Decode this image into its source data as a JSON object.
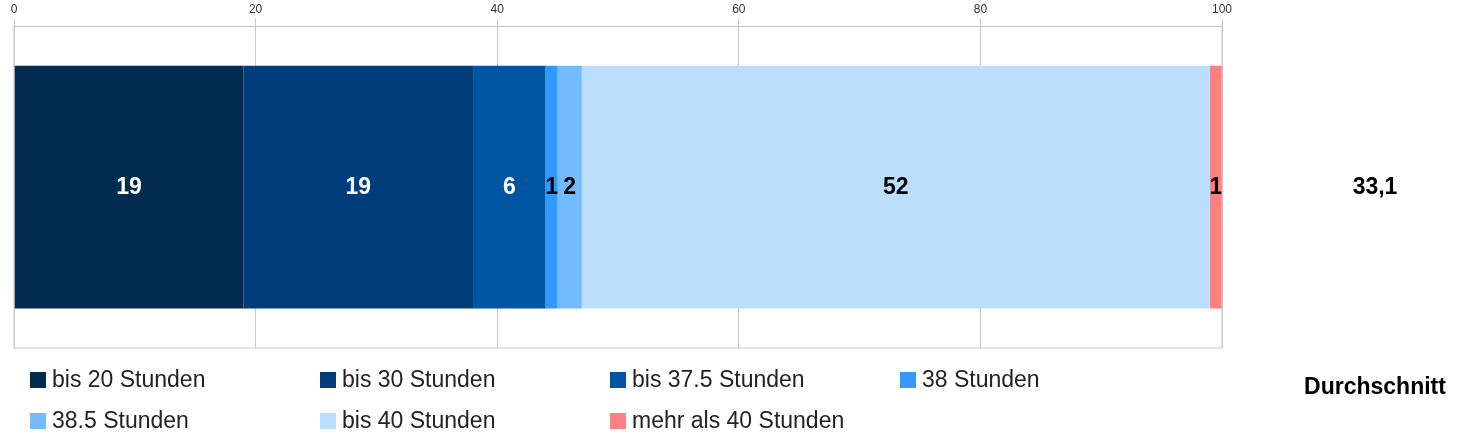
{
  "chart_data": {
    "type": "bar",
    "orientation": "horizontal",
    "stacked": true,
    "categories": [
      null
    ],
    "series": [
      {
        "name": "bis 20 Stunden",
        "color": "#012b50",
        "values": [
          19
        ]
      },
      {
        "name": "bis 30 Stunden",
        "color": "#003d7a",
        "values": [
          19
        ]
      },
      {
        "name": "bis 37.5 Stunden",
        "color": "#0055a3",
        "values": [
          6
        ]
      },
      {
        "name": "38 Stunden",
        "color": "#3399ff",
        "values": [
          1
        ]
      },
      {
        "name": "38.5 Stunden",
        "color": "#73bbfc",
        "values": [
          2
        ]
      },
      {
        "name": "bis 40 Stunden",
        "color": "#bbdefc",
        "values": [
          52
        ]
      },
      {
        "name": "mehr als 40 Stunden",
        "color": "#ff8080",
        "values": [
          1
        ]
      }
    ],
    "xlim": [
      0,
      100
    ],
    "xticks": [
      0,
      20,
      40,
      60,
      80,
      100
    ],
    "grid": "x",
    "legend": "bottom",
    "data_labels": true,
    "annotations": [
      "33,1",
      "Durchschnitt"
    ]
  }
}
